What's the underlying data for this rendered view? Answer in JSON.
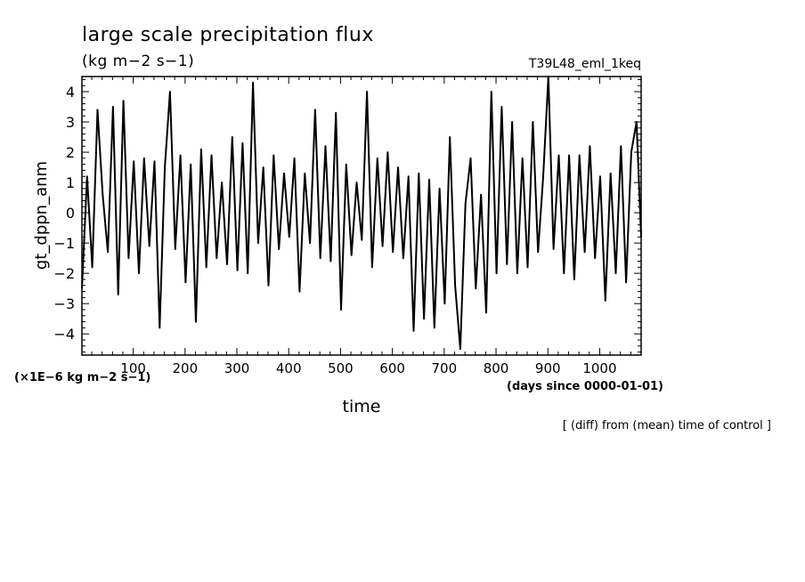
{
  "chart_data": {
    "type": "line",
    "title": "large scale precipitation flux",
    "units": "(kg m−2 s−1)",
    "run_label": "T39L48_eml_1keq",
    "ylabel": "gt_dppn_anm",
    "xlabel": "time",
    "y_scale_note": "(×1E−6 kg m−2 s−1)",
    "x_units_note": "(days since 0000-01-01)",
    "footnote": "[ (diff) from (mean) time of control ]",
    "xlim": [
      1,
      1080
    ],
    "ylim": [
      -4.7,
      4.5
    ],
    "x_ticks": [
      100,
      200,
      300,
      400,
      500,
      600,
      700,
      800,
      900,
      1000
    ],
    "y_ticks": [
      -4,
      -3,
      -2,
      -1,
      0,
      1,
      2,
      3,
      4
    ],
    "line_color": "#000000",
    "series": [
      {
        "x": [
          1,
          11,
          21,
          31,
          41,
          51,
          61,
          71,
          81,
          91,
          101,
          111,
          121,
          131,
          141,
          151,
          161,
          171,
          181,
          191,
          201,
          211,
          221,
          231,
          241,
          251,
          261,
          271,
          281,
          291,
          301,
          311,
          321,
          331,
          341,
          351,
          361,
          371,
          381,
          391,
          401,
          411,
          421,
          431,
          441,
          451,
          461,
          471,
          481,
          491,
          501,
          511,
          521,
          531,
          541,
          551,
          561,
          571,
          581,
          591,
          601,
          611,
          621,
          631,
          641,
          651,
          661,
          671,
          681,
          691,
          701,
          711,
          721,
          731,
          741,
          751,
          761,
          771,
          781,
          791,
          801,
          811,
          821,
          831,
          841,
          851,
          861,
          871,
          881,
          891,
          901,
          911,
          921,
          931,
          941,
          951,
          961,
          971,
          981,
          991,
          1001,
          1011,
          1021,
          1031,
          1041,
          1051,
          1061,
          1071,
          1080
        ],
        "values": [
          -2.5,
          1.2,
          -1.8,
          3.4,
          0.6,
          -1.3,
          3.5,
          -2.7,
          3.7,
          -1.5,
          1.7,
          -2.0,
          1.8,
          -1.1,
          1.7,
          -3.8,
          1.5,
          4.0,
          -1.2,
          1.9,
          -2.3,
          1.6,
          -3.6,
          2.1,
          -1.8,
          1.9,
          -1.5,
          1.0,
          -1.7,
          2.5,
          -1.9,
          2.3,
          -2.0,
          4.3,
          -1.0,
          1.5,
          -2.4,
          1.9,
          -1.2,
          1.3,
          -0.8,
          1.8,
          -2.6,
          1.3,
          -1.0,
          3.4,
          -1.5,
          2.2,
          -1.6,
          3.3,
          -3.2,
          1.6,
          -1.4,
          1.0,
          -0.9,
          4.0,
          -1.8,
          1.8,
          -1.1,
          2.0,
          -1.3,
          1.5,
          -1.5,
          1.2,
          -3.9,
          1.3,
          -3.5,
          1.1,
          -3.8,
          0.8,
          -3.0,
          2.5,
          -2.4,
          -4.5,
          0.3,
          1.8,
          -2.5,
          0.6,
          -3.3,
          4.0,
          -2.0,
          3.5,
          -1.7,
          3.0,
          -2.0,
          1.8,
          -1.8,
          3.0,
          -1.3,
          1.2,
          4.5,
          -1.2,
          1.9,
          -2.0,
          1.9,
          -2.2,
          1.9,
          -1.3,
          2.2,
          -1.5,
          1.2,
          -2.9,
          1.3,
          -2.0,
          2.2,
          -2.3,
          2.0,
          3.0,
          -0.8
        ]
      }
    ]
  }
}
